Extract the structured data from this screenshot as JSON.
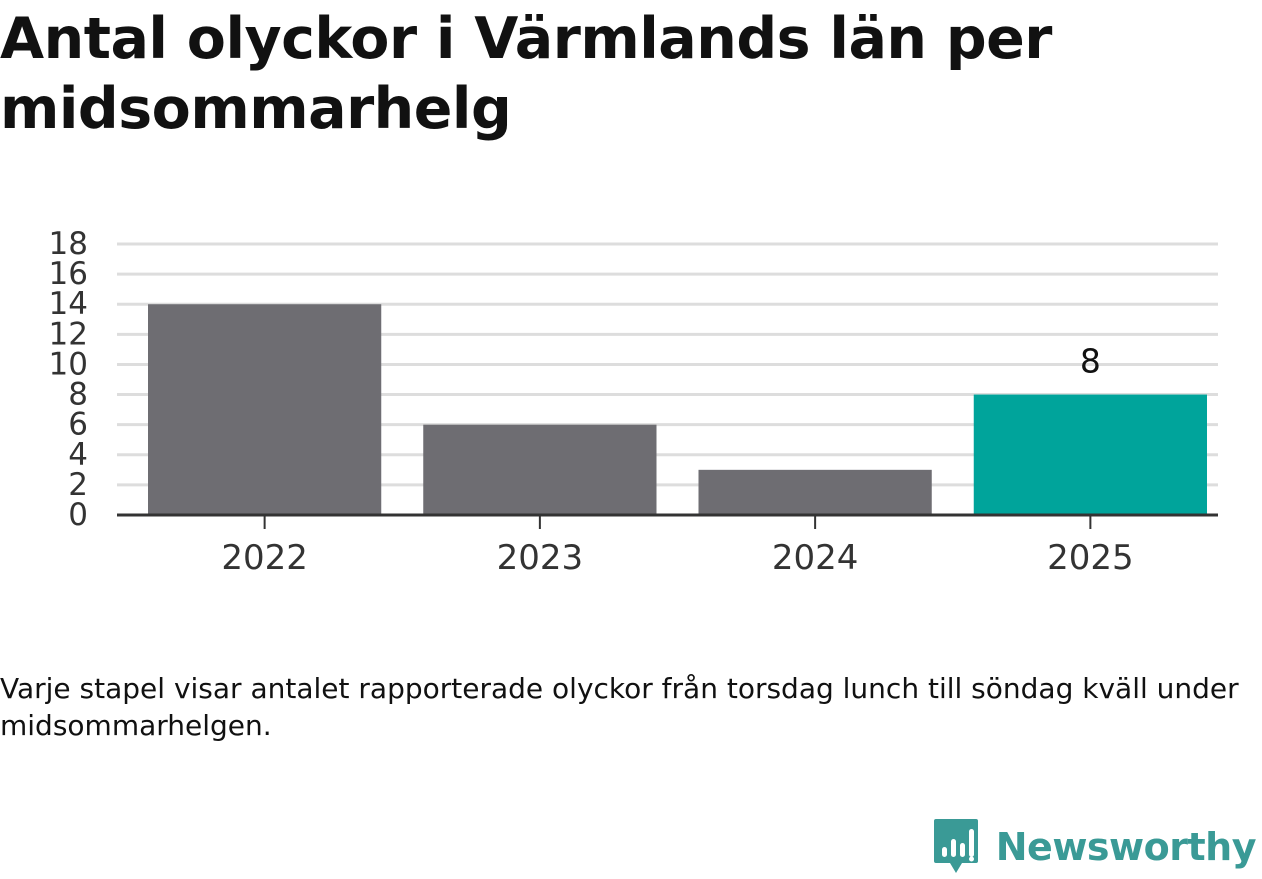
{
  "title": "Antal olyckor i Värmlands län per midsommarhelg",
  "caption": "Varje stapel visar antalet rapporterade olyckor från torsdag lunch till söndag kväll under midsommarhelgen.",
  "brand": {
    "name": "Newsworthy",
    "icon": "newsworthy-logo-icon",
    "color": "#3a9a96"
  },
  "colors": {
    "bar_default": "#6e6d72",
    "bar_highlight": "#00a49b",
    "grid": "#dddddd",
    "axis": "#333333"
  },
  "chart_data": {
    "type": "bar",
    "categories": [
      "2022",
      "2023",
      "2024",
      "2025"
    ],
    "values": [
      14,
      6,
      3,
      8
    ],
    "highlight_index": 3,
    "data_labels": [
      "",
      "",
      "",
      "8"
    ],
    "yticks": [
      0,
      2,
      4,
      6,
      8,
      10,
      12,
      14,
      16,
      18
    ],
    "ylim": [
      0,
      18
    ],
    "grid": true,
    "legend": "none",
    "xlabel": "",
    "ylabel": ""
  }
}
